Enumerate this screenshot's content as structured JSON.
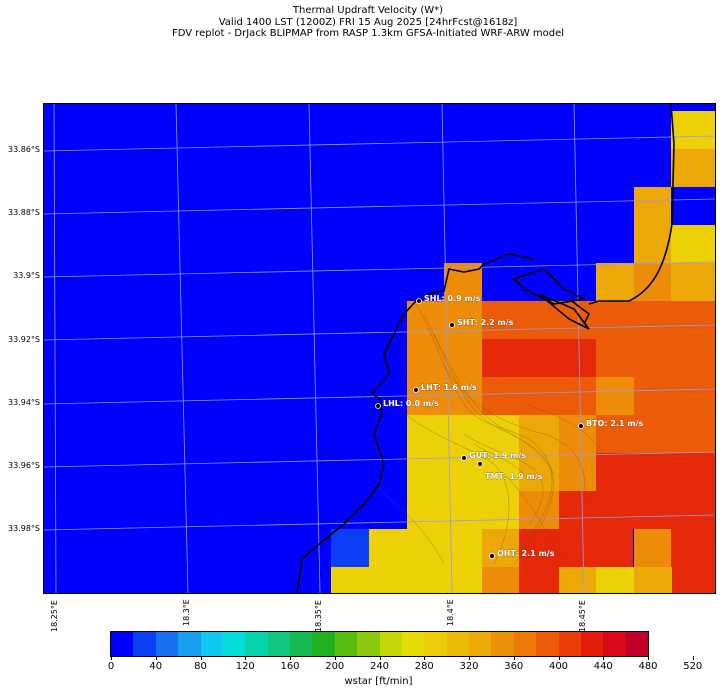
{
  "title": {
    "line1": "Thermal Updraft Velocity (W*)",
    "line2": "Valid 1400 LST (1200Z) FRI 15 Aug 2025 [24hrFcst@1618z]",
    "line3": "FDV replot - DrJack BLIPMAP from RASP 1.3km GFSA-Initiated WRF-ARW model"
  },
  "lat_labels": [
    "33.86°S",
    "33.88°S",
    "33.9°S",
    "33.92°S",
    "33.94°S",
    "33.96°S",
    "33.98°S"
  ],
  "lon_labels": [
    "18.25°E",
    "18.3°E",
    "18.35°E",
    "18.4°E",
    "18.45°E"
  ],
  "stations": [
    {
      "id": "SHL",
      "label": "SHL: 0.9 m/s"
    },
    {
      "id": "SHT",
      "label": "SHT: 2.2 m/s"
    },
    {
      "id": "LHT",
      "label": "LHT: 1.6 m/s"
    },
    {
      "id": "LHL",
      "label": "LHL: 0.0 m/s"
    },
    {
      "id": "BTO",
      "label": "BTO: 2.1 m/s"
    },
    {
      "id": "GUT",
      "label": "GUT: 1.9 m/s"
    },
    {
      "id": "TMT",
      "label": "TMT: 1.9 m/s"
    },
    {
      "id": "OHT",
      "label": "OHT: 2.1 m/s"
    }
  ],
  "colorbar": {
    "label": "wstar [ft/min]",
    "ticks": [
      "0",
      "40",
      "80",
      "120",
      "160",
      "200",
      "240",
      "280",
      "320",
      "360",
      "400",
      "440",
      "480",
      "520"
    ],
    "colors": [
      "#0000ff",
      "#0a3ff5",
      "#1670f0",
      "#1a9ff0",
      "#10c8f0",
      "#05dcd8",
      "#05d2a8",
      "#10c880",
      "#16b850",
      "#20b020",
      "#5abc10",
      "#8cc810",
      "#c4d808",
      "#e8dc08",
      "#eccc08",
      "#ecbc08",
      "#eca808",
      "#ec9008",
      "#ec7808",
      "#ec5c08",
      "#ec3c08",
      "#e41c0c",
      "#d80818",
      "#c00028"
    ]
  },
  "field_legend_colors": {
    "blue": "#0000ff",
    "yellow": "#ecd008",
    "orange": "#ec8c08",
    "dark_orange": "#ec5c08",
    "red": "#e42808"
  }
}
